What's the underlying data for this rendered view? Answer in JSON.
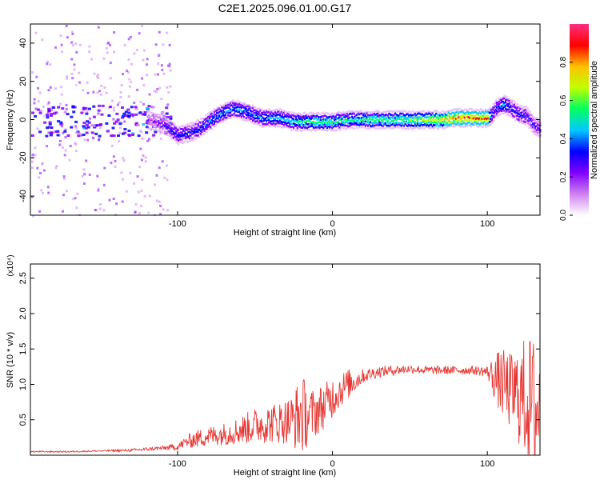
{
  "chart_data": [
    {
      "type": "heatmap",
      "title": "C2E1.2025.096.01.00.G17",
      "xlabel": "Height of straight line (km)",
      "ylabel": "Frequency (Hz)",
      "xlim": [
        -195,
        134
      ],
      "ylim": [
        -50,
        50
      ],
      "xticks": [
        -100,
        0,
        100
      ],
      "xtick_labels": [
        "-100",
        "0",
        "100"
      ],
      "yticks": [
        -40,
        -20,
        0,
        20,
        40
      ],
      "ytick_labels": [
        "-40",
        "-20",
        "0",
        "20",
        "40"
      ],
      "colorbar": {
        "label": "Normalized spectral amplitude",
        "range": [
          0,
          1
        ],
        "ticks": [
          0.0,
          0.2,
          0.4,
          0.6,
          0.8
        ],
        "tick_labels": [
          "0.0",
          "0.2",
          "0.4",
          "0.6",
          "0.8"
        ],
        "colors": [
          "#ffffff",
          "#d080f0",
          "#8000ff",
          "#0000ff",
          "#00c8ff",
          "#00ff60",
          "#c0ff00",
          "#ffc000",
          "#ff0000",
          "#ff3080"
        ]
      },
      "ridge": {
        "x": [
          -120,
          -110,
          -105,
          -100,
          -95,
          -90,
          -85,
          -80,
          -75,
          -70,
          -65,
          -60,
          -55,
          -50,
          -45,
          -40,
          -35,
          -30,
          -25,
          -20,
          -10,
          0,
          10,
          20,
          30,
          40,
          50,
          60,
          70,
          80,
          90,
          100,
          102,
          105,
          110,
          115,
          120,
          125,
          130,
          134
        ],
        "y": [
          0,
          -2,
          -5,
          -8,
          -7,
          -6,
          -4,
          -1,
          2,
          4,
          6,
          5,
          4,
          2,
          1,
          1,
          1,
          0,
          -1,
          -1,
          -1,
          -1,
          0,
          0,
          0,
          0,
          0,
          0,
          0,
          1,
          1,
          1,
          2,
          6,
          8,
          6,
          3,
          2,
          -3,
          -5
        ],
        "amplitude": [
          0.2,
          0.3,
          0.35,
          0.4,
          0.4,
          0.4,
          0.4,
          0.45,
          0.45,
          0.45,
          0.45,
          0.45,
          0.45,
          0.45,
          0.45,
          0.5,
          0.5,
          0.5,
          0.55,
          0.55,
          0.6,
          0.6,
          0.55,
          0.6,
          0.6,
          0.6,
          0.65,
          0.7,
          0.8,
          0.9,
          0.9,
          0.9,
          0.4,
          0.4,
          0.45,
          0.4,
          0.4,
          0.35,
          0.3,
          0.3
        ]
      }
    },
    {
      "type": "line",
      "xlabel": "Height of straight line (km)",
      "ylabel": "SNR (10 * v/v)",
      "y_multiplier": "(x10⁴)",
      "xlim": [
        -195,
        134
      ],
      "ylim": [
        0,
        2.7
      ],
      "xticks": [
        -100,
        0,
        100
      ],
      "xtick_labels": [
        "-100",
        "0",
        "100"
      ],
      "yticks": [
        0.5,
        1.0,
        1.5,
        2.0,
        2.5
      ],
      "ytick_labels": [
        "0.5",
        "1.0",
        "1.5",
        "2.0",
        "2.5"
      ],
      "line_color": "#e53935",
      "series": [
        {
          "x": [
            -195,
            -170,
            -150,
            -130,
            -110,
            -100,
            -95,
            -90,
            -80,
            -70,
            -60,
            -50,
            -40,
            -30,
            -25,
            -20,
            -15,
            -10,
            -5,
            0,
            5,
            10,
            15,
            20,
            30,
            40,
            50,
            60,
            70,
            80,
            90,
            100,
            105,
            110,
            115,
            120,
            125,
            130,
            134
          ],
          "y_center": [
            0.05,
            0.05,
            0.06,
            0.07,
            0.1,
            0.12,
            0.18,
            0.22,
            0.27,
            0.3,
            0.35,
            0.42,
            0.45,
            0.48,
            0.5,
            0.58,
            0.55,
            0.62,
            0.7,
            0.82,
            0.92,
            1.0,
            1.05,
            1.12,
            1.18,
            1.2,
            1.22,
            1.2,
            1.2,
            1.2,
            1.2,
            1.18,
            1.1,
            1.0,
            0.9,
            0.85,
            0.8,
            0.7,
            0.6
          ],
          "y_spread": [
            0.01,
            0.01,
            0.01,
            0.02,
            0.03,
            0.05,
            0.08,
            0.12,
            0.14,
            0.16,
            0.2,
            0.25,
            0.28,
            0.32,
            0.4,
            0.6,
            0.38,
            0.35,
            0.32,
            0.3,
            0.25,
            0.22,
            0.15,
            0.1,
            0.08,
            0.07,
            0.06,
            0.06,
            0.06,
            0.06,
            0.06,
            0.08,
            0.35,
            0.5,
            0.55,
            0.7,
            0.9,
            1.0,
            1.0
          ]
        }
      ]
    }
  ]
}
